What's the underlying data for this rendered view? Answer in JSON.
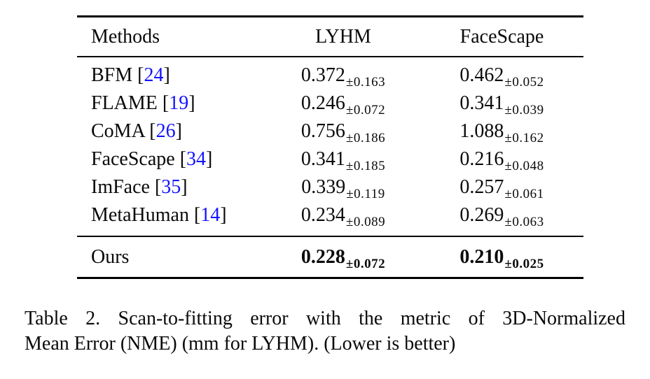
{
  "table": {
    "columns": [
      "Methods",
      "LYHM",
      "FaceScape"
    ],
    "rows": [
      {
        "method": "BFM",
        "cite_open": "[",
        "cite": "24",
        "cite_close": "]",
        "lyhm_value": "0.372",
        "lyhm_std": "±0.163",
        "facescape_value": "0.462",
        "facescape_std": "±0.052"
      },
      {
        "method": "FLAME",
        "cite_open": "[",
        "cite": "19",
        "cite_close": "]",
        "lyhm_value": "0.246",
        "lyhm_std": "±0.072",
        "facescape_value": "0.341",
        "facescape_std": "±0.039"
      },
      {
        "method": "CoMA",
        "cite_open": "[",
        "cite": "26",
        "cite_close": "]",
        "lyhm_value": "0.756",
        "lyhm_std": "±0.186",
        "facescape_value": "1.088",
        "facescape_std": "±0.162"
      },
      {
        "method": "FaceScape",
        "cite_open": "[",
        "cite": "34",
        "cite_close": "]",
        "lyhm_value": "0.341",
        "lyhm_std": "±0.185",
        "facescape_value": "0.216",
        "facescape_std": "±0.048"
      },
      {
        "method": "ImFace",
        "cite_open": "[",
        "cite": "35",
        "cite_close": "]",
        "lyhm_value": "0.339",
        "lyhm_std": "±0.119",
        "facescape_value": "0.257",
        "facescape_std": "±0.061"
      },
      {
        "method": "MetaHuman",
        "cite_open": "[",
        "cite": "14",
        "cite_close": "]",
        "lyhm_value": "0.234",
        "lyhm_std": "±0.089",
        "facescape_value": "0.269",
        "facescape_std": "±0.063"
      }
    ],
    "ours_row": {
      "method": "Ours",
      "lyhm_value": "0.228",
      "lyhm_std": "±0.072",
      "facescape_value": "0.210",
      "facescape_std": "±0.025"
    }
  },
  "caption": {
    "line1": "Table 2. Scan-to-fitting error with the metric of 3D-Normalized",
    "line2": "Mean Error (NME) (mm for LYHM). (Lower is better)"
  },
  "colors": {
    "citation_blue": "#1414ff",
    "text": "#0a0a0a",
    "background": "#ffffff"
  }
}
